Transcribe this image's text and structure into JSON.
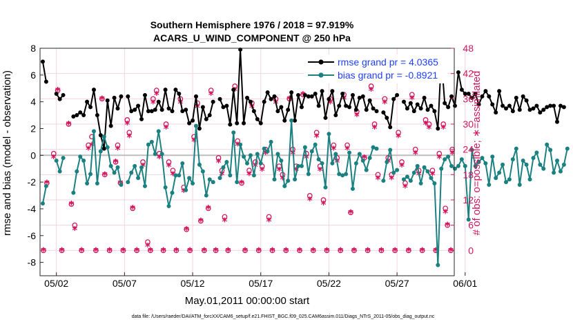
{
  "chart_data": {
    "type": "line",
    "title": "Southern Hemisphere 1976 / 2018 = 97.919%",
    "subtitle": "ACARS_U_WIND_COMPONENT @ 250 hPa",
    "xlabel": "May.01,2011 00:00:00 start",
    "ylabel": "rmse and bias (model - observation)",
    "ylabel_right": "# of obs: o=possible; ∗=assimilated",
    "footnote": "data file: /Users/raeder/DAI/ATM_forcXX/CAM6_setup/f.e21.FHIST_BGC.f09_025.CAM6assim.011/Diags_NTrS_2011-05/obs_diag_output.nc",
    "x_range_days": [
      0.8,
      31.2
    ],
    "ylim": [
      -9,
      8
    ],
    "ylim_right": [
      -6,
      48
    ],
    "x_ticks": [
      {
        "day": 2,
        "label": "05/02"
      },
      {
        "day": 7,
        "label": "05/07"
      },
      {
        "day": 12,
        "label": "05/12"
      },
      {
        "day": 17,
        "label": "05/17"
      },
      {
        "day": 22,
        "label": "05/22"
      },
      {
        "day": 27,
        "label": "05/27"
      },
      {
        "day": 32,
        "label": "06/01"
      }
    ],
    "y_ticks": [
      -8,
      -6,
      -4,
      -2,
      0,
      2,
      4,
      6,
      8
    ],
    "y_ticks_right": [
      0,
      6,
      12,
      18,
      24,
      30,
      36,
      42,
      48
    ],
    "series": [
      {
        "name": "rmse",
        "legend": "rmse grand pr = 4.0365",
        "color": "#000000",
        "start_day": 1.0,
        "step_day": 0.25,
        "values": [
          7.0,
          5.5,
          null,
          null,
          4.6,
          4.2,
          4.5,
          null,
          null,
          2.9,
          3.0,
          3.2,
          3.0,
          4.0,
          3.6,
          4.9,
          3.0,
          1.5,
          0.5,
          4.1,
          2.2,
          4.3,
          3.5,
          4.4,
          null,
          4.4,
          3.3,
          3.4,
          3.7,
          2.7,
          4.5,
          3.3,
          3.3,
          3.4,
          4.0,
          3.4,
          4.9,
          3.5,
          3.3,
          4.9,
          4.6,
          3.3,
          3.4,
          2.4,
          2.6,
          4.4,
          2.0,
          3.6,
          2.7,
          3.0,
          4.0,
          null,
          4.2,
          3.6,
          3.7,
          2.3,
          4.9,
          2.4,
          7.9,
          2.4,
          4.3,
          4.0,
          3.3,
          2.7,
          2.4,
          4.0,
          4.7,
          4.2,
          4.4,
          3.3,
          3.6,
          2.6,
          3.4,
          4.7,
          2.6,
          4.5,
          3.6,
          4.5,
          4.4,
          4.4,
          4.6,
          3.7,
          4.8,
          2.8,
          4.2,
          4.8,
          3.0,
          3.7,
          4.6,
          3.7,
          3.6,
          4.5,
          3.4,
          4.3,
          4.4,
          3.4,
          4.1,
          3.5,
          3.3,
          null,
          3.2,
          2.8,
          2.1,
          4.2,
          4.5,
          null,
          4.0,
          3.5,
          3.9,
          3.3,
          3.8,
          3.5,
          4.3,
          3.4,
          3.7,
          3.3,
          2.0,
          7.3,
          3.9,
          3.6,
          4.4,
          3.7,
          6.2,
          4.9,
          4.6,
          4.6,
          4.3,
          4.6,
          3.8,
          4.4,
          4.8,
          4.4,
          3.8,
          3.2,
          4.8,
          3.7,
          3.5,
          3.7,
          3.3,
          4.3,
          3.4,
          4.4,
          4.1,
          3.4,
          3.5,
          3.7,
          3.2,
          3.4,
          3.6,
          3.7,
          3.7,
          2.5,
          3.7,
          3.6
        ]
      },
      {
        "name": "bias",
        "legend": "bias grand pr = -0.8921",
        "color": "#1a8080",
        "start_day": 1.0,
        "step_day": 0.25,
        "values": [
          -3.6,
          -2.3,
          null,
          null,
          -0.4,
          -1.2,
          -0.2,
          null,
          null,
          -2.8,
          -1.2,
          -0.1,
          -0.4,
          -2.1,
          -1.4,
          1.8,
          -2.1,
          0.3,
          1.4,
          0.6,
          -0.8,
          -1.3,
          -0.9,
          -2.2,
          null,
          -2.0,
          -1.3,
          -0.8,
          -1.7,
          -0.9,
          -2.3,
          0.8,
          1.0,
          0.1,
          1.8,
          0.1,
          -2.4,
          -3.8,
          -2.8,
          -1.5,
          -1.5,
          -0.6,
          -2.6,
          -1.7,
          -2.1,
          2.2,
          -0.7,
          -1.2,
          -3.0,
          -1.8,
          -2.0,
          null,
          -1.7,
          -0.9,
          -0.5,
          -1.5,
          1.7,
          -2.0,
          0.8,
          -0.1,
          -0.6,
          0.0,
          -1.5,
          0.1,
          -0.6,
          0.5,
          0.3,
          1.0,
          -1.8,
          0.1,
          -0.4,
          -2.3,
          -1.9,
          2.6,
          -1.8,
          -0.8,
          -0.8,
          0.6,
          -1.4,
          0.3,
          0.8,
          -0.3,
          -0.6,
          -2.4,
          1.6,
          -0.6,
          0.1,
          -1.4,
          -1.5,
          -1.4,
          0.2,
          -2.5,
          -0.6,
          0.1,
          -0.4,
          -1.1,
          -0.2,
          0.6,
          0.5,
          null,
          -1.9,
          -0.5,
          0.4,
          -1.3,
          -1.1,
          null,
          -1.8,
          -1.6,
          -1.9,
          -1.3,
          -0.8,
          -2.1,
          -0.9,
          -1.2,
          -1.7,
          -2.1,
          -8.2,
          -1.0,
          -0.3,
          -0.1,
          -0.8,
          -1.0,
          -0.8,
          -0.3,
          -0.8,
          -4.8,
          0.4,
          -0.8,
          -0.5,
          -0.2,
          -0.6,
          -2.2,
          -0.1,
          -1.7,
          -1.3,
          -0.7,
          -2.0,
          -1.8,
          -0.3,
          0.5,
          -2.2,
          -0.4,
          -0.7,
          -1.8,
          -0.2,
          0.2,
          -0.7,
          -1.0,
          0.8,
          0.4,
          -1.3,
          -0.4,
          -1.2,
          -0.7,
          0.5
        ]
      }
    ],
    "nobs_possible": {
      "marker": "o",
      "color": "#d4145a",
      "points": [
        [
          1.05,
          0
        ],
        [
          1.3,
          16
        ],
        [
          2.1,
          38
        ],
        [
          1.8,
          23
        ],
        [
          2.4,
          0
        ],
        [
          2.9,
          30
        ],
        [
          3.1,
          11
        ],
        [
          3.35,
          6
        ],
        [
          3.85,
          0
        ],
        [
          4.35,
          25
        ],
        [
          4.6,
          27
        ],
        [
          4.9,
          0
        ],
        [
          5.35,
          36
        ],
        [
          5.55,
          18
        ],
        [
          5.9,
          0
        ],
        [
          6.35,
          21
        ],
        [
          6.5,
          25
        ],
        [
          6.7,
          16
        ],
        [
          6.9,
          0
        ],
        [
          7.2,
          31
        ],
        [
          7.35,
          28
        ],
        [
          7.6,
          10
        ],
        [
          7.9,
          0
        ],
        [
          8.35,
          21
        ],
        [
          8.7,
          2
        ],
        [
          8.9,
          0
        ],
        [
          9.1,
          36
        ],
        [
          9.35,
          38
        ],
        [
          9.55,
          23
        ],
        [
          9.85,
          0
        ],
        [
          10.05,
          30
        ],
        [
          10.25,
          21
        ],
        [
          10.55,
          19
        ],
        [
          10.8,
          0
        ],
        [
          11.1,
          36
        ],
        [
          11.35,
          15
        ],
        [
          11.55,
          5
        ],
        [
          11.8,
          0
        ],
        [
          12.1,
          27
        ],
        [
          12.35,
          35
        ],
        [
          12.6,
          7
        ],
        [
          12.85,
          0
        ],
        [
          13.15,
          10
        ],
        [
          13.35,
          38
        ],
        [
          13.7,
          0
        ],
        [
          13.9,
          22
        ],
        [
          14.15,
          19
        ],
        [
          14.35,
          8
        ],
        [
          14.6,
          0
        ],
        [
          15.1,
          39
        ],
        [
          15.3,
          26
        ],
        [
          15.6,
          16
        ],
        [
          15.85,
          0
        ],
        [
          16.15,
          19
        ],
        [
          16.35,
          35
        ],
        [
          16.6,
          21
        ],
        [
          16.85,
          0
        ],
        [
          17.1,
          20
        ],
        [
          17.35,
          24
        ],
        [
          17.6,
          8
        ],
        [
          17.85,
          0
        ],
        [
          18.1,
          36
        ],
        [
          18.35,
          20
        ],
        [
          18.6,
          18
        ],
        [
          18.85,
          0
        ],
        [
          19.1,
          36
        ],
        [
          19.35,
          24
        ],
        [
          19.6,
          20
        ],
        [
          19.85,
          0
        ],
        [
          20.1,
          37
        ],
        [
          20.35,
          23
        ],
        [
          20.6,
          13
        ],
        [
          20.85,
          0
        ],
        [
          21.1,
          28
        ],
        [
          21.35,
          20
        ],
        [
          21.6,
          12
        ],
        [
          21.85,
          0
        ],
        [
          22.1,
          36
        ],
        [
          22.35,
          25
        ],
        [
          22.6,
          22
        ],
        [
          22.85,
          0
        ],
        [
          23.1,
          37
        ],
        [
          23.35,
          25
        ],
        [
          23.6,
          9
        ],
        [
          23.85,
          0
        ],
        [
          24.05,
          33
        ],
        [
          24.35,
          44
        ],
        [
          24.6,
          22
        ],
        [
          24.85,
          0
        ],
        [
          25.1,
          39
        ],
        [
          25.35,
          30
        ],
        [
          25.6,
          18
        ],
        [
          25.85,
          0
        ],
        [
          26.1,
          36
        ],
        [
          26.35,
          22
        ],
        [
          26.6,
          18
        ],
        [
          26.85,
          0
        ],
        [
          27.1,
          28
        ],
        [
          27.35,
          21
        ],
        [
          27.6,
          16
        ],
        [
          27.85,
          0
        ],
        [
          28.1,
          37
        ],
        [
          28.35,
          24
        ],
        [
          28.6,
          19
        ],
        [
          28.85,
          0
        ],
        [
          29.1,
          31
        ],
        [
          29.35,
          30
        ],
        [
          29.6,
          19
        ],
        [
          29.85,
          0
        ],
        [
          30.1,
          23
        ],
        [
          30.4,
          30
        ],
        [
          30.55,
          10
        ],
        [
          30.7,
          6
        ],
        [
          30.95,
          0
        ],
        [
          31.05,
          24
        ]
      ]
    },
    "nobs_assimilated": {
      "marker": "*",
      "color": "#d4145a",
      "points": [
        [
          1.05,
          0
        ],
        [
          1.3,
          16
        ],
        [
          2.1,
          38
        ],
        [
          1.8,
          22
        ],
        [
          2.4,
          0
        ],
        [
          2.9,
          30
        ],
        [
          3.1,
          11
        ],
        [
          3.35,
          5
        ],
        [
          3.85,
          0
        ],
        [
          4.35,
          24
        ],
        [
          4.6,
          25
        ],
        [
          4.9,
          0
        ],
        [
          5.35,
          36
        ],
        [
          5.55,
          18
        ],
        [
          5.9,
          0
        ],
        [
          6.35,
          21
        ],
        [
          6.5,
          24
        ],
        [
          6.7,
          16
        ],
        [
          6.9,
          0
        ],
        [
          7.2,
          30
        ],
        [
          7.35,
          27
        ],
        [
          7.6,
          10
        ],
        [
          7.9,
          0
        ],
        [
          8.35,
          20
        ],
        [
          8.7,
          1
        ],
        [
          8.9,
          0
        ],
        [
          9.1,
          35
        ],
        [
          9.35,
          37
        ],
        [
          9.55,
          22
        ],
        [
          9.85,
          0
        ],
        [
          10.05,
          29
        ],
        [
          10.25,
          20
        ],
        [
          10.55,
          18
        ],
        [
          10.8,
          0
        ],
        [
          11.1,
          35
        ],
        [
          11.35,
          14
        ],
        [
          11.55,
          5
        ],
        [
          11.8,
          0
        ],
        [
          12.1,
          26
        ],
        [
          12.35,
          34
        ],
        [
          12.6,
          7
        ],
        [
          12.85,
          0
        ],
        [
          13.15,
          10
        ],
        [
          13.35,
          37
        ],
        [
          13.7,
          0
        ],
        [
          13.9,
          21
        ],
        [
          14.15,
          18
        ],
        [
          14.35,
          7
        ],
        [
          14.6,
          0
        ],
        [
          15.1,
          38
        ],
        [
          15.3,
          25
        ],
        [
          15.6,
          16
        ],
        [
          15.85,
          0
        ],
        [
          16.15,
          18
        ],
        [
          16.35,
          34
        ],
        [
          16.6,
          20
        ],
        [
          16.85,
          0
        ],
        [
          17.1,
          19
        ],
        [
          17.35,
          23
        ],
        [
          17.6,
          7
        ],
        [
          17.85,
          0
        ],
        [
          18.1,
          35
        ],
        [
          18.35,
          19
        ],
        [
          18.6,
          17
        ],
        [
          18.85,
          0
        ],
        [
          19.1,
          36
        ],
        [
          19.35,
          23
        ],
        [
          19.6,
          19
        ],
        [
          19.85,
          0
        ],
        [
          20.1,
          37
        ],
        [
          20.35,
          22
        ],
        [
          20.6,
          12
        ],
        [
          20.85,
          0
        ],
        [
          21.1,
          27
        ],
        [
          21.35,
          19
        ],
        [
          21.6,
          11
        ],
        [
          21.85,
          0
        ],
        [
          22.1,
          35
        ],
        [
          22.35,
          24
        ],
        [
          22.6,
          21
        ],
        [
          22.85,
          0
        ],
        [
          23.1,
          36
        ],
        [
          23.35,
          24
        ],
        [
          23.6,
          9
        ],
        [
          23.85,
          0
        ],
        [
          24.05,
          32
        ],
        [
          24.35,
          43
        ],
        [
          24.6,
          22
        ],
        [
          24.85,
          0
        ],
        [
          25.1,
          38
        ],
        [
          25.35,
          29
        ],
        [
          25.6,
          17
        ],
        [
          25.85,
          0
        ],
        [
          26.1,
          35
        ],
        [
          26.35,
          21
        ],
        [
          26.6,
          17
        ],
        [
          26.85,
          0
        ],
        [
          27.1,
          27
        ],
        [
          27.35,
          20
        ],
        [
          27.6,
          15
        ],
        [
          27.85,
          0
        ],
        [
          28.1,
          36
        ],
        [
          28.35,
          23
        ],
        [
          28.6,
          18
        ],
        [
          28.85,
          0
        ],
        [
          29.1,
          30
        ],
        [
          29.35,
          29
        ],
        [
          29.6,
          18
        ],
        [
          29.85,
          0
        ],
        [
          30.1,
          22
        ],
        [
          30.4,
          29
        ],
        [
          30.55,
          9
        ],
        [
          30.7,
          6
        ],
        [
          30.95,
          0
        ],
        [
          31.05,
          23
        ]
      ]
    }
  }
}
